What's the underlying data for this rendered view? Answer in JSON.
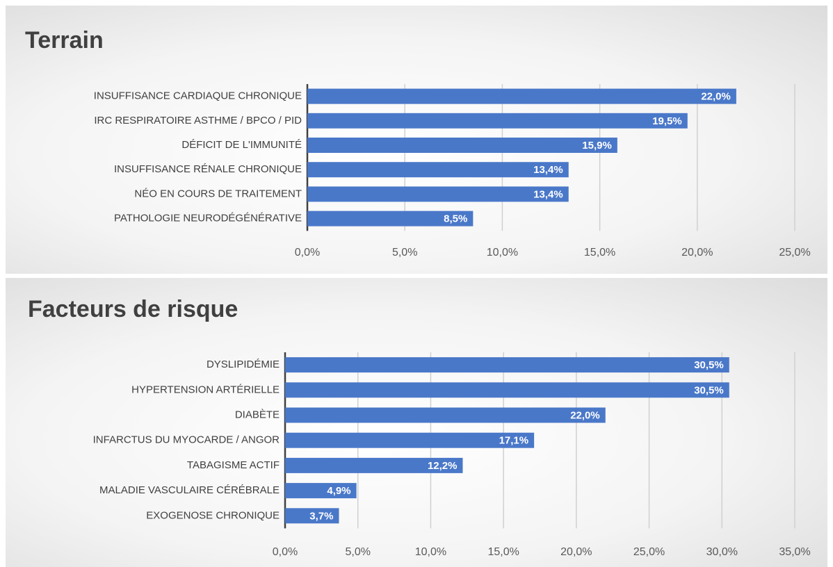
{
  "chart_data": [
    {
      "type": "barh",
      "title": "Terrain",
      "categories": [
        "INSUFFISANCE CARDIAQUE CHRONIQUE",
        "IRC RESPIRATOIRE ASTHME / BPCO / PID",
        "DÉFICIT DE L'IMMUNITÉ",
        "INSUFFISANCE RÉNALE CHRONIQUE",
        "NÉO EN COURS DE TRAITEMENT",
        "PATHOLOGIE NEURODÉGÉNÉRATIVE"
      ],
      "values": [
        22.0,
        19.5,
        15.9,
        13.4,
        13.4,
        8.5
      ],
      "value_labels": [
        "22,0%",
        "19,5%",
        "15,9%",
        "13,4%",
        "13,4%",
        "8,5%"
      ],
      "color": "#4a78c9",
      "xlim": [
        0,
        25
      ],
      "xticks": [
        {
          "value": 0,
          "label": "0,0%"
        },
        {
          "value": 5,
          "label": "5,0%"
        },
        {
          "value": 10,
          "label": "10,0%"
        },
        {
          "value": 15,
          "label": "15,0%"
        },
        {
          "value": 20,
          "label": "20,0%"
        },
        {
          "value": 25,
          "label": "25,0%"
        }
      ],
      "grid": true
    },
    {
      "type": "barh",
      "title": "Facteurs de risque",
      "categories": [
        "DYSLIPIDÉMIE",
        "HYPERTENSION ARTÉRIELLE",
        "DIABÈTE",
        "INFARCTUS DU MYOCARDE / ANGOR",
        "TABAGISME ACTIF",
        "MALADIE VASCULAIRE CÉRÉBRALE",
        "EXOGENOSE CHRONIQUE"
      ],
      "values": [
        30.5,
        30.5,
        22.0,
        17.1,
        12.2,
        4.9,
        3.7
      ],
      "value_labels": [
        "30,5%",
        "30,5%",
        "22,0%",
        "17,1%",
        "12,2%",
        "4,9%",
        "3,7%"
      ],
      "color": "#4a78c9",
      "xlim": [
        0,
        35
      ],
      "xticks": [
        {
          "value": 0,
          "label": "0,0%"
        },
        {
          "value": 5,
          "label": "5,0%"
        },
        {
          "value": 10,
          "label": "10,0%"
        },
        {
          "value": 15,
          "label": "15,0%"
        },
        {
          "value": 20,
          "label": "20,0%"
        },
        {
          "value": 25,
          "label": "25,0%"
        },
        {
          "value": 30,
          "label": "30,0%"
        },
        {
          "value": 35,
          "label": "35,0%"
        }
      ],
      "grid": true
    }
  ]
}
